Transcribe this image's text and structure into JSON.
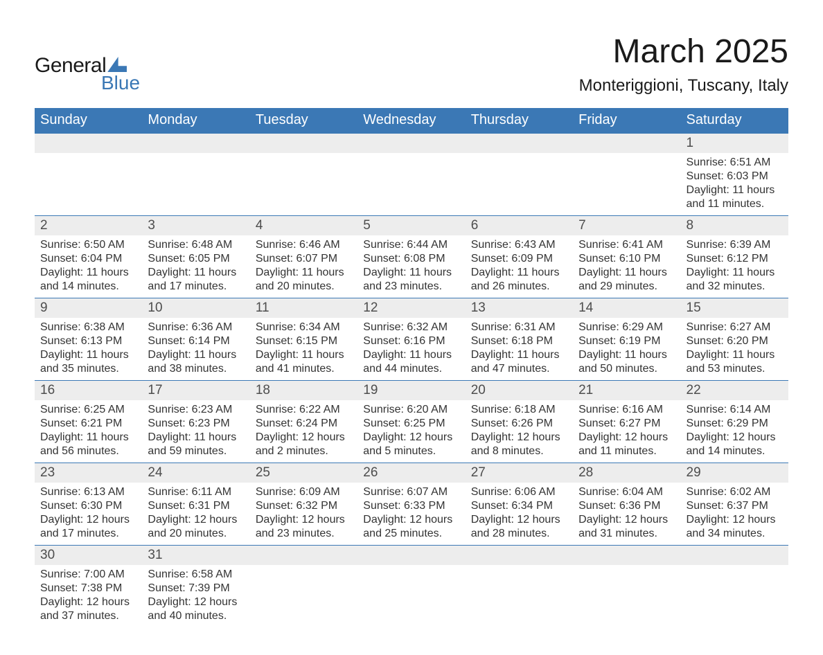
{
  "logo": {
    "text_general": "General",
    "text_blue": "Blue",
    "brand_color": "#3b78b5"
  },
  "title": {
    "month": "March 2025",
    "location": "Monteriggioni, Tuscany, Italy"
  },
  "colors": {
    "header_bg": "#3b78b5",
    "header_text": "#ffffff",
    "daynum_bg": "#ededed",
    "daynum_text": "#4d4d4d",
    "body_text": "#333333",
    "rule": "#3b78b5",
    "page_bg": "#ffffff"
  },
  "typography": {
    "title_fontsize_pt": 36,
    "location_fontsize_pt": 18,
    "header_fontsize_pt": 15,
    "daynum_fontsize_pt": 14,
    "body_fontsize_pt": 12,
    "font_family": "Arial"
  },
  "calendar": {
    "type": "table",
    "columns": [
      "Sunday",
      "Monday",
      "Tuesday",
      "Wednesday",
      "Thursday",
      "Friday",
      "Saturday"
    ],
    "weeks": [
      [
        null,
        null,
        null,
        null,
        null,
        null,
        {
          "n": "1",
          "sunrise": "Sunrise: 6:51 AM",
          "sunset": "Sunset: 6:03 PM",
          "day1": "Daylight: 11 hours",
          "day2": "and 11 minutes."
        }
      ],
      [
        {
          "n": "2",
          "sunrise": "Sunrise: 6:50 AM",
          "sunset": "Sunset: 6:04 PM",
          "day1": "Daylight: 11 hours",
          "day2": "and 14 minutes."
        },
        {
          "n": "3",
          "sunrise": "Sunrise: 6:48 AM",
          "sunset": "Sunset: 6:05 PM",
          "day1": "Daylight: 11 hours",
          "day2": "and 17 minutes."
        },
        {
          "n": "4",
          "sunrise": "Sunrise: 6:46 AM",
          "sunset": "Sunset: 6:07 PM",
          "day1": "Daylight: 11 hours",
          "day2": "and 20 minutes."
        },
        {
          "n": "5",
          "sunrise": "Sunrise: 6:44 AM",
          "sunset": "Sunset: 6:08 PM",
          "day1": "Daylight: 11 hours",
          "day2": "and 23 minutes."
        },
        {
          "n": "6",
          "sunrise": "Sunrise: 6:43 AM",
          "sunset": "Sunset: 6:09 PM",
          "day1": "Daylight: 11 hours",
          "day2": "and 26 minutes."
        },
        {
          "n": "7",
          "sunrise": "Sunrise: 6:41 AM",
          "sunset": "Sunset: 6:10 PM",
          "day1": "Daylight: 11 hours",
          "day2": "and 29 minutes."
        },
        {
          "n": "8",
          "sunrise": "Sunrise: 6:39 AM",
          "sunset": "Sunset: 6:12 PM",
          "day1": "Daylight: 11 hours",
          "day2": "and 32 minutes."
        }
      ],
      [
        {
          "n": "9",
          "sunrise": "Sunrise: 6:38 AM",
          "sunset": "Sunset: 6:13 PM",
          "day1": "Daylight: 11 hours",
          "day2": "and 35 minutes."
        },
        {
          "n": "10",
          "sunrise": "Sunrise: 6:36 AM",
          "sunset": "Sunset: 6:14 PM",
          "day1": "Daylight: 11 hours",
          "day2": "and 38 minutes."
        },
        {
          "n": "11",
          "sunrise": "Sunrise: 6:34 AM",
          "sunset": "Sunset: 6:15 PM",
          "day1": "Daylight: 11 hours",
          "day2": "and 41 minutes."
        },
        {
          "n": "12",
          "sunrise": "Sunrise: 6:32 AM",
          "sunset": "Sunset: 6:16 PM",
          "day1": "Daylight: 11 hours",
          "day2": "and 44 minutes."
        },
        {
          "n": "13",
          "sunrise": "Sunrise: 6:31 AM",
          "sunset": "Sunset: 6:18 PM",
          "day1": "Daylight: 11 hours",
          "day2": "and 47 minutes."
        },
        {
          "n": "14",
          "sunrise": "Sunrise: 6:29 AM",
          "sunset": "Sunset: 6:19 PM",
          "day1": "Daylight: 11 hours",
          "day2": "and 50 minutes."
        },
        {
          "n": "15",
          "sunrise": "Sunrise: 6:27 AM",
          "sunset": "Sunset: 6:20 PM",
          "day1": "Daylight: 11 hours",
          "day2": "and 53 minutes."
        }
      ],
      [
        {
          "n": "16",
          "sunrise": "Sunrise: 6:25 AM",
          "sunset": "Sunset: 6:21 PM",
          "day1": "Daylight: 11 hours",
          "day2": "and 56 minutes."
        },
        {
          "n": "17",
          "sunrise": "Sunrise: 6:23 AM",
          "sunset": "Sunset: 6:23 PM",
          "day1": "Daylight: 11 hours",
          "day2": "and 59 minutes."
        },
        {
          "n": "18",
          "sunrise": "Sunrise: 6:22 AM",
          "sunset": "Sunset: 6:24 PM",
          "day1": "Daylight: 12 hours",
          "day2": "and 2 minutes."
        },
        {
          "n": "19",
          "sunrise": "Sunrise: 6:20 AM",
          "sunset": "Sunset: 6:25 PM",
          "day1": "Daylight: 12 hours",
          "day2": "and 5 minutes."
        },
        {
          "n": "20",
          "sunrise": "Sunrise: 6:18 AM",
          "sunset": "Sunset: 6:26 PM",
          "day1": "Daylight: 12 hours",
          "day2": "and 8 minutes."
        },
        {
          "n": "21",
          "sunrise": "Sunrise: 6:16 AM",
          "sunset": "Sunset: 6:27 PM",
          "day1": "Daylight: 12 hours",
          "day2": "and 11 minutes."
        },
        {
          "n": "22",
          "sunrise": "Sunrise: 6:14 AM",
          "sunset": "Sunset: 6:29 PM",
          "day1": "Daylight: 12 hours",
          "day2": "and 14 minutes."
        }
      ],
      [
        {
          "n": "23",
          "sunrise": "Sunrise: 6:13 AM",
          "sunset": "Sunset: 6:30 PM",
          "day1": "Daylight: 12 hours",
          "day2": "and 17 minutes."
        },
        {
          "n": "24",
          "sunrise": "Sunrise: 6:11 AM",
          "sunset": "Sunset: 6:31 PM",
          "day1": "Daylight: 12 hours",
          "day2": "and 20 minutes."
        },
        {
          "n": "25",
          "sunrise": "Sunrise: 6:09 AM",
          "sunset": "Sunset: 6:32 PM",
          "day1": "Daylight: 12 hours",
          "day2": "and 23 minutes."
        },
        {
          "n": "26",
          "sunrise": "Sunrise: 6:07 AM",
          "sunset": "Sunset: 6:33 PM",
          "day1": "Daylight: 12 hours",
          "day2": "and 25 minutes."
        },
        {
          "n": "27",
          "sunrise": "Sunrise: 6:06 AM",
          "sunset": "Sunset: 6:34 PM",
          "day1": "Daylight: 12 hours",
          "day2": "and 28 minutes."
        },
        {
          "n": "28",
          "sunrise": "Sunrise: 6:04 AM",
          "sunset": "Sunset: 6:36 PM",
          "day1": "Daylight: 12 hours",
          "day2": "and 31 minutes."
        },
        {
          "n": "29",
          "sunrise": "Sunrise: 6:02 AM",
          "sunset": "Sunset: 6:37 PM",
          "day1": "Daylight: 12 hours",
          "day2": "and 34 minutes."
        }
      ],
      [
        {
          "n": "30",
          "sunrise": "Sunrise: 7:00 AM",
          "sunset": "Sunset: 7:38 PM",
          "day1": "Daylight: 12 hours",
          "day2": "and 37 minutes."
        },
        {
          "n": "31",
          "sunrise": "Sunrise: 6:58 AM",
          "sunset": "Sunset: 7:39 PM",
          "day1": "Daylight: 12 hours",
          "day2": "and 40 minutes."
        },
        null,
        null,
        null,
        null,
        null
      ]
    ]
  }
}
